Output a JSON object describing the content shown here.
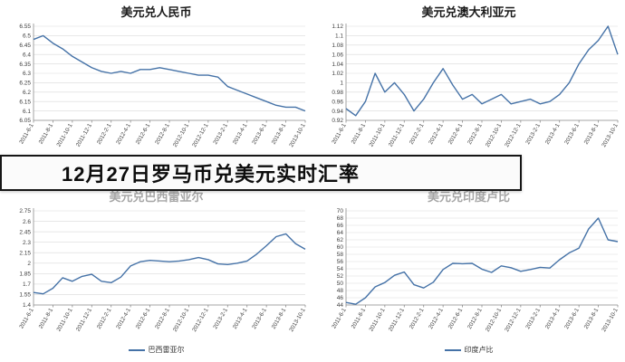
{
  "banner": {
    "title": "12月27日罗马币兑美元实时汇率"
  },
  "colors": {
    "line": "#4572a7",
    "grid": "#d9d9d9",
    "axis": "#8c8c8c",
    "axis_text": "#404040",
    "banner_border": "#161616"
  },
  "chart_data": [
    {
      "type": "line",
      "title": "美元兑人民币",
      "title_color": "#1a1a1a",
      "legend": "",
      "xlabel": "",
      "ylabel": "",
      "x_tick_labels": [
        "2011-6-1",
        "2011-8-1",
        "2011-10-1",
        "2011-12-1",
        "2012-2-1",
        "2012-4-1",
        "2012-6-1",
        "2012-8-1",
        "2012-10-1",
        "2012-12-1",
        "2013-2-1",
        "2013-4-1",
        "2013-6-1",
        "2013-8-1",
        "2013-10-1"
      ],
      "points_per_tick": 2,
      "values": [
        6.48,
        6.5,
        6.46,
        6.43,
        6.39,
        6.36,
        6.33,
        6.31,
        6.3,
        6.31,
        6.3,
        6.32,
        6.32,
        6.33,
        6.32,
        6.31,
        6.3,
        6.29,
        6.29,
        6.28,
        6.23,
        6.21,
        6.19,
        6.17,
        6.15,
        6.13,
        6.12,
        6.12,
        6.1
      ],
      "ylim": [
        6.05,
        6.55
      ],
      "y_ticks": [
        6.55,
        6.5,
        6.45,
        6.4,
        6.35,
        6.3,
        6.25,
        6.2,
        6.15,
        6.1,
        6.05
      ]
    },
    {
      "type": "line",
      "title": "美元兑澳大利亚元",
      "title_color": "#1a1a1a",
      "legend": "",
      "xlabel": "",
      "ylabel": "",
      "x_tick_labels": [
        "2011-6-1",
        "2011-8-1",
        "2011-10-1",
        "2011-12-1",
        "2012-2-1",
        "2012-4-1",
        "2012-6-1",
        "2012-8-1",
        "2012-10-1",
        "2012-12-1",
        "2013-2-1",
        "2013-4-1",
        "2013-6-1",
        "2013-8-1",
        "2013-10-1"
      ],
      "points_per_tick": 2,
      "values": [
        0.945,
        0.93,
        0.96,
        1.02,
        0.98,
        1.0,
        0.975,
        0.94,
        0.965,
        1.0,
        1.03,
        0.995,
        0.965,
        0.975,
        0.955,
        0.965,
        0.975,
        0.955,
        0.96,
        0.965,
        0.955,
        0.96,
        0.975,
        1.0,
        1.04,
        1.07,
        1.09,
        1.12,
        1.06
      ],
      "ylim": [
        0.92,
        1.12
      ],
      "y_ticks": [
        1.12,
        1.1,
        1.08,
        1.06,
        1.04,
        1.02,
        1,
        0.98,
        0.96,
        0.94,
        0.92
      ]
    },
    {
      "type": "line",
      "title": "美元兑巴西雷亚尔",
      "title_color": "#a6a6a6",
      "legend": "巴西雷亚尔",
      "xlabel": "",
      "ylabel": "",
      "x_tick_labels": [
        "2011-6-1",
        "2011-8-1",
        "2011-10-1",
        "2011-12-1",
        "2012-2-1",
        "2012-4-1",
        "2012-6-1",
        "2012-8-1",
        "2012-10-1",
        "2012-12-1",
        "2013-2-1",
        "2013-4-1",
        "2013-6-1",
        "2013-8-1",
        "2013-10-1"
      ],
      "points_per_tick": 2,
      "values": [
        1.58,
        1.56,
        1.64,
        1.79,
        1.74,
        1.81,
        1.84,
        1.74,
        1.72,
        1.8,
        1.96,
        2.02,
        2.04,
        2.03,
        2.02,
        2.03,
        2.05,
        2.08,
        2.05,
        1.99,
        1.98,
        2.0,
        2.03,
        2.13,
        2.25,
        2.38,
        2.42,
        2.28,
        2.2
      ],
      "ylim": [
        1.4,
        2.75
      ],
      "y_ticks": [
        2.75,
        2.6,
        2.45,
        2.3,
        2.15,
        2,
        1.85,
        1.7,
        1.55,
        1.4
      ]
    },
    {
      "type": "line",
      "title": "美元兑印度卢比",
      "title_color": "#a6a6a6",
      "legend": "印度卢比",
      "xlabel": "",
      "ylabel": "",
      "x_tick_labels": [
        "2011-6-1",
        "2011-8-1",
        "2011-10-1",
        "2011-12-1",
        "2012-2-1",
        "2012-4-1",
        "2012-6-1",
        "2012-8-1",
        "2012-10-1",
        "2012-12-1",
        "2013-2-1",
        "2013-4-1",
        "2013-6-1",
        "2013-8-1",
        "2013-10-1"
      ],
      "points_per_tick": 2,
      "values": [
        44.7,
        44.2,
        46.0,
        49.0,
        50.2,
        52.2,
        53.1,
        49.6,
        48.7,
        50.3,
        53.8,
        55.5,
        55.4,
        55.5,
        53.9,
        53.0,
        54.8,
        54.3,
        53.3,
        53.8,
        54.4,
        54.2,
        56.5,
        58.4,
        59.7,
        65.0,
        68.0,
        62.0,
        61.5
      ],
      "ylim": [
        44,
        70
      ],
      "y_ticks": [
        70,
        68,
        66,
        64,
        62,
        60,
        58,
        56,
        54,
        52,
        50,
        48,
        46,
        44
      ]
    }
  ]
}
